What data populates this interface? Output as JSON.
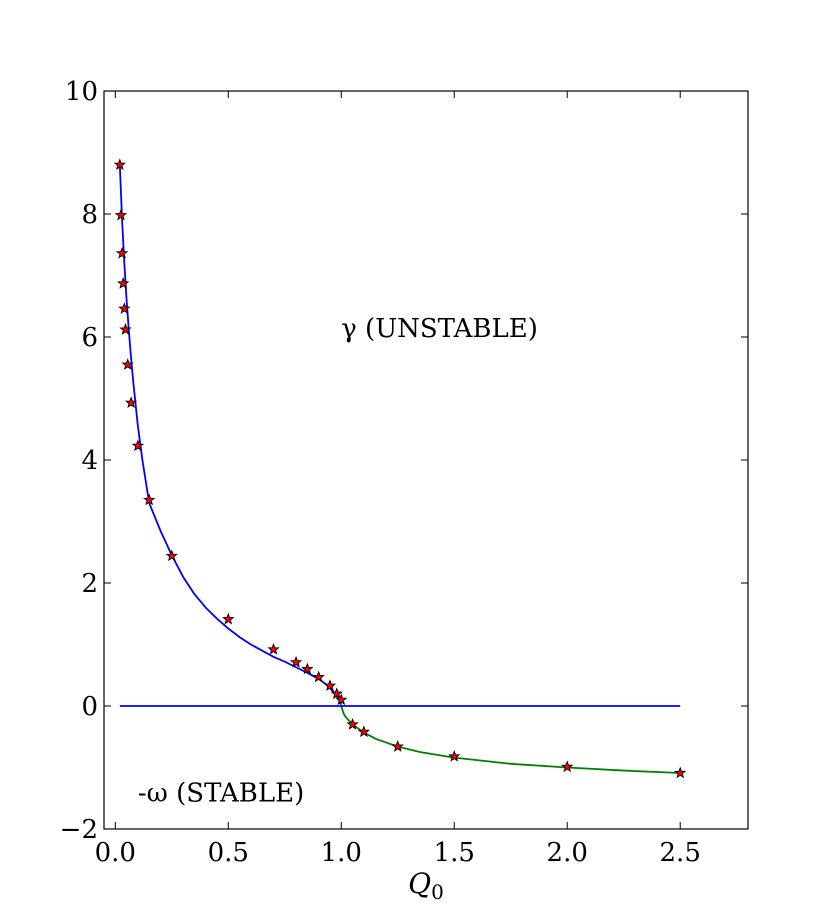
{
  "chart_data": {
    "type": "line",
    "xlabel": "Q",
    "xlabel_subscript": "0",
    "ylabel": "",
    "xlim": [
      -0.05,
      2.8
    ],
    "ylim": [
      -2,
      10
    ],
    "xticks": [
      0.0,
      0.5,
      1.0,
      1.5,
      2.0,
      2.5
    ],
    "xtick_labels": [
      "0.0",
      "0.5",
      "1.0",
      "1.5",
      "2.0",
      "2.5"
    ],
    "yticks": [
      -2,
      0,
      2,
      4,
      6,
      8,
      10
    ],
    "ytick_labels": [
      "−2",
      "0",
      "2",
      "4",
      "6",
      "8",
      "10"
    ],
    "grid": false,
    "annotations": [
      {
        "text": "γ (UNSTABLE)",
        "x": 1.0,
        "y": 6.0
      },
      {
        "text": "-ω (STABLE)",
        "x": 0.1,
        "y": -1.55
      }
    ],
    "series": [
      {
        "color": "#0000ff",
        "style": "line",
        "x": [
          0.02,
          0.03,
          0.04,
          0.05,
          0.06,
          0.07,
          0.08,
          0.1,
          0.12,
          0.15,
          0.2,
          0.25,
          0.3,
          0.35,
          0.4,
          0.45,
          0.5,
          0.55,
          0.6,
          0.65,
          0.7,
          0.75,
          0.8,
          0.85,
          0.9,
          0.93,
          0.95,
          0.97,
          0.98,
          0.99,
          1.0
        ],
        "values": [
          8.8,
          7.9,
          7.2,
          6.6,
          6.1,
          5.65,
          5.25,
          4.55,
          4.0,
          3.3,
          2.85,
          2.45,
          2.1,
          1.82,
          1.6,
          1.42,
          1.26,
          1.12,
          1.0,
          0.9,
          0.8,
          0.72,
          0.63,
          0.54,
          0.44,
          0.36,
          0.29,
          0.21,
          0.16,
          0.1,
          0.02
        ]
      },
      {
        "color": "#008000",
        "style": "line",
        "x": [
          1.0,
          1.01,
          1.02,
          1.05,
          1.1,
          1.15,
          1.25,
          1.35,
          1.5,
          1.75,
          2.0,
          2.25,
          2.5
        ],
        "values": [
          0.0,
          -0.12,
          -0.18,
          -0.3,
          -0.43,
          -0.53,
          -0.66,
          -0.75,
          -0.84,
          -0.94,
          -1.0,
          -1.05,
          -1.09
        ]
      },
      {
        "color": "#0000ff",
        "style": "line",
        "x": [
          0.02,
          2.5
        ],
        "values": [
          0.0,
          0.0
        ]
      },
      {
        "color": "#ff0000",
        "style": "markers",
        "marker": "star",
        "x": [
          0.02,
          0.025,
          0.03,
          0.035,
          0.04,
          0.045,
          0.055,
          0.07,
          0.1,
          0.15,
          0.25,
          0.5,
          0.7,
          0.8,
          0.85,
          0.9,
          0.95,
          0.98,
          1.0,
          1.05,
          1.1,
          1.25,
          1.5,
          2.0,
          2.5
        ],
        "values": [
          8.8,
          7.98,
          7.36,
          6.87,
          6.46,
          6.12,
          5.55,
          4.93,
          4.23,
          3.35,
          2.44,
          1.41,
          0.92,
          0.71,
          0.6,
          0.47,
          0.33,
          0.2,
          0.1,
          -0.3,
          -0.42,
          -0.66,
          -0.82,
          -0.99,
          -1.09
        ]
      }
    ]
  }
}
